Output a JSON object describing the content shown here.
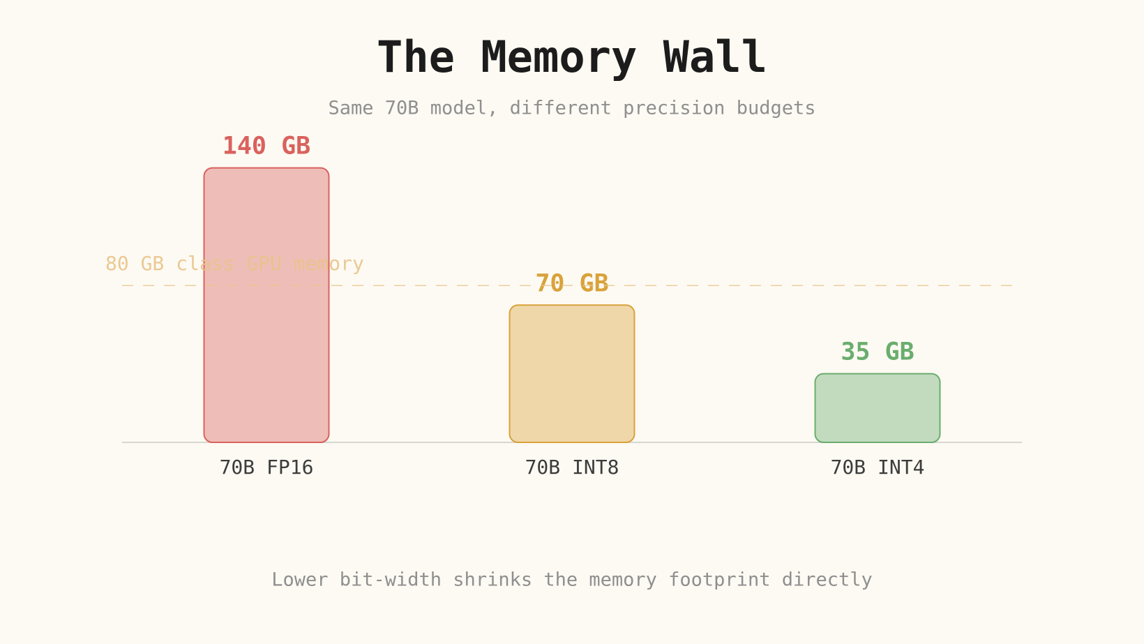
{
  "chart_data": {
    "type": "bar",
    "title": "The Memory Wall",
    "subtitle": "Same 70B model, different precision budgets",
    "categories": [
      "70B FP16",
      "70B INT8",
      "70B INT4"
    ],
    "values": [
      140,
      70,
      35
    ],
    "value_labels": [
      "140 GB",
      "70 GB",
      "35 GB"
    ],
    "colors": [
      "#d9625e",
      "#d9a23a",
      "#6aad6e"
    ],
    "ylim": [
      0,
      140
    ],
    "reference_line": {
      "value": 80,
      "label": "80 GB class GPU memory",
      "color": "#e8c48a"
    },
    "footnote": "Lower bit-width shrinks the memory footprint directly"
  }
}
